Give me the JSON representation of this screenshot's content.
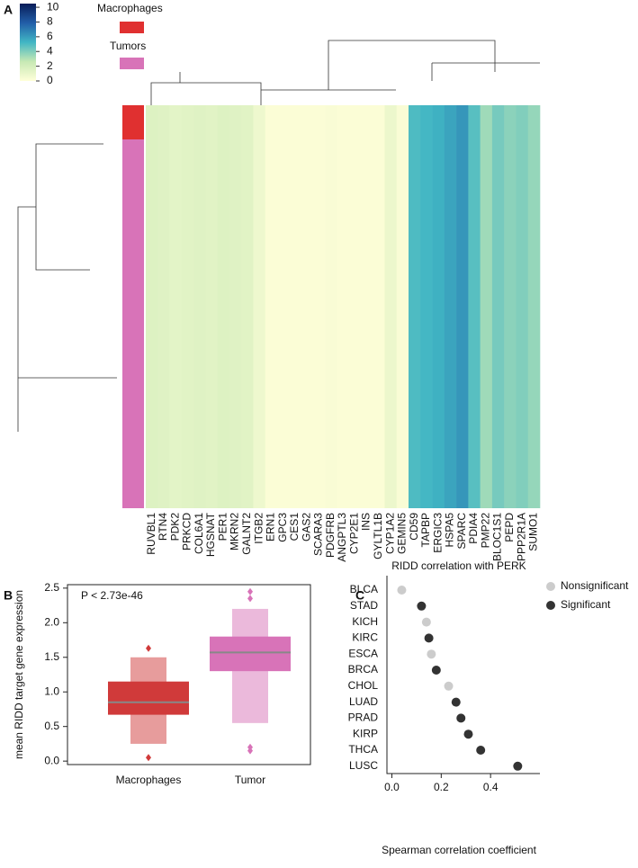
{
  "chart_data": [
    {
      "type": "heatmap",
      "panel_label": "A",
      "clim": [
        0,
        10.5
      ],
      "cticks": [
        0,
        2,
        4,
        6,
        8,
        10
      ],
      "colorscale": [
        "#ffffd9",
        "#c7e9b4",
        "#41b6c4",
        "#225ea8",
        "#081d58"
      ],
      "legend": [
        {
          "name": "Macrophages",
          "color": "#e03030"
        },
        {
          "name": "Tumors",
          "color": "#d873b8"
        }
      ],
      "categories": [
        "RUVBL1",
        "RTN4",
        "PDK2",
        "PRKCD",
        "COL6A1",
        "HGSNAT",
        "PER1",
        "MKRN2",
        "GALNT2",
        "ITGB2",
        "ERN1",
        "GPC3",
        "CES1",
        "GAS2",
        "SCARA3",
        "PDGFRB",
        "ANGPTL3",
        "CYP2E1",
        "INS",
        "GYLTL1B",
        "CYP1A2",
        "GEMIN5",
        "CD59",
        "TAPBP",
        "ERGIC3",
        "HSPA5",
        "SPARC",
        "PDIA4",
        "PMP22",
        "BLOC1S1",
        "PEPD",
        "PPP2R1A",
        "SUMO1"
      ],
      "values": [
        1.6,
        1.5,
        1.3,
        1.4,
        1.5,
        1.4,
        1.6,
        1.5,
        1.4,
        0.8,
        0.2,
        0.2,
        0.2,
        0.2,
        0.2,
        0.3,
        0.2,
        0.2,
        0.2,
        0.2,
        0.9,
        0.3,
        5.0,
        5.2,
        5.4,
        5.8,
        6.2,
        4.8,
        3.4,
        4.2,
        3.8,
        4.0,
        3.6
      ]
    },
    {
      "type": "boxen",
      "panel_label": "B",
      "annotation": "P < 2.73e-46",
      "ylabel": "mean RIDD target gene expression",
      "categories": [
        "Macrophages",
        "Tumor"
      ],
      "colors": [
        "#d03a3a",
        "#d873b8"
      ],
      "median": [
        0.85,
        1.57
      ],
      "q1": [
        0.67,
        1.3
      ],
      "q3": [
        1.15,
        1.8
      ],
      "lower": [
        0.25,
        0.55
      ],
      "upper": [
        1.5,
        2.2
      ],
      "outliers": [
        [
          0.05,
          1.63
        ],
        [
          0.15,
          0.2,
          2.35,
          2.45
        ]
      ],
      "ylim": [
        -0.05,
        2.55
      ],
      "yticks": [
        {
          "value": 0,
          "label": "0.0"
        },
        {
          "value": 0.5,
          "label": "0.5"
        },
        {
          "value": 1,
          "label": "1.0"
        },
        {
          "value": 1.5,
          "label": "1.5"
        },
        {
          "value": 2,
          "label": "2.0"
        },
        {
          "value": 2.5,
          "label": "2.5"
        }
      ]
    },
    {
      "type": "dot",
      "panel_label": "C",
      "title": "RIDD correlation with PERK",
      "xlabel": "Spearman correlation coefficient",
      "categories": [
        "BLCA",
        "STAD",
        "KICH",
        "KIRC",
        "ESCA",
        "BRCA",
        "CHOL",
        "LUAD",
        "PRAD",
        "KIRP",
        "THCA",
        "LUSC"
      ],
      "series": [
        {
          "name": "Nonsignificant",
          "color": "#cccccc",
          "values": [
            0.04,
            null,
            0.14,
            null,
            0.16,
            null,
            0.23,
            null,
            null,
            null,
            null,
            null
          ]
        },
        {
          "name": "Significant",
          "color": "#333333",
          "values": [
            null,
            0.12,
            null,
            0.15,
            null,
            0.18,
            null,
            0.26,
            0.28,
            0.31,
            0.36,
            0.51
          ]
        }
      ],
      "xlim": [
        -0.02,
        0.6
      ],
      "xticks": [
        {
          "value": 0,
          "label": "0.0"
        },
        {
          "value": 0.2,
          "label": "0.2"
        },
        {
          "value": 0.4,
          "label": "0.4"
        }
      ],
      "legend": "upper right"
    }
  ]
}
